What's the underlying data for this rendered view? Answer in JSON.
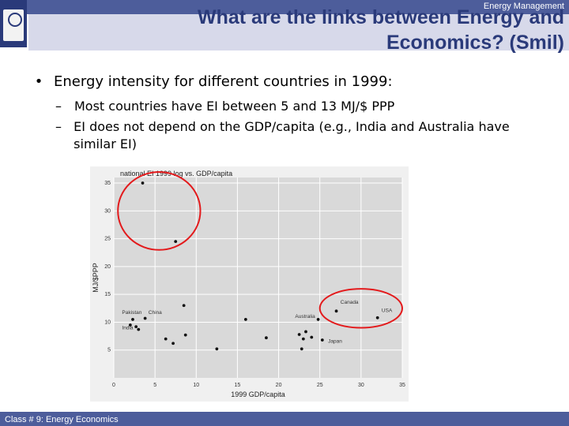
{
  "header": {
    "top_right": "Energy Management",
    "title": "What are the links between Energy and Economics? (Smil)"
  },
  "bullets": [
    {
      "text": "Energy intensity for different countries in 1999:",
      "subitems": [
        "Most countries have EI between 5 and 13 MJ/$ PPP",
        "EI does not depend on the GDP/capita (e.g., India and Australia have similar EI)"
      ]
    }
  ],
  "footer": {
    "text": "Class # 9: Energy Economics"
  },
  "chart_data": {
    "type": "scatter",
    "title": "national EI 1999 log vs. GDP/capita",
    "xlabel": "1999 GDP/capita",
    "ylabel": "MJ/$PPP",
    "xlim": [
      0,
      35
    ],
    "ylim": [
      0,
      36
    ],
    "xticks": [
      0,
      5,
      10,
      15,
      20,
      25,
      30,
      35
    ],
    "yticks": [
      5,
      10,
      15,
      20,
      25,
      30,
      35
    ],
    "points": [
      {
        "x": 3.5,
        "y": 35
      },
      {
        "x": 7.5,
        "y": 24.5
      },
      {
        "x": 8.5,
        "y": 13
      },
      {
        "x": 2.3,
        "y": 10.5
      },
      {
        "x": 2.0,
        "y": 9.5
      },
      {
        "x": 2.7,
        "y": 9.2
      },
      {
        "x": 3.8,
        "y": 10.7
      },
      {
        "x": 3.0,
        "y": 8.7
      },
      {
        "x": 6.3,
        "y": 7.0
      },
      {
        "x": 7.2,
        "y": 6.2
      },
      {
        "x": 8.7,
        "y": 7.7
      },
      {
        "x": 12.5,
        "y": 5.2
      },
      {
        "x": 16.0,
        "y": 10.5
      },
      {
        "x": 18.5,
        "y": 7.2
      },
      {
        "x": 22.5,
        "y": 7.8
      },
      {
        "x": 23.3,
        "y": 8.3
      },
      {
        "x": 23.0,
        "y": 7.0
      },
      {
        "x": 24.0,
        "y": 7.3
      },
      {
        "x": 24.8,
        "y": 10.5
      },
      {
        "x": 25.3,
        "y": 6.8
      },
      {
        "x": 22.8,
        "y": 5.2
      },
      {
        "x": 27.0,
        "y": 12.0
      },
      {
        "x": 32.0,
        "y": 10.8
      }
    ],
    "annotations": [
      {
        "text": "Pakistan",
        "x": 1.0,
        "y": 11.5
      },
      {
        "text": "China",
        "x": 4.2,
        "y": 11.5
      },
      {
        "text": "India",
        "x": 1.0,
        "y": 8.7
      },
      {
        "text": "Australia",
        "x": 22.0,
        "y": 10.8
      },
      {
        "text": "Japan",
        "x": 26.0,
        "y": 6.3
      },
      {
        "text": "Canada",
        "x": 27.5,
        "y": 13.3
      },
      {
        "text": "USA",
        "x": 32.5,
        "y": 11.8
      }
    ],
    "highlights": [
      {
        "type": "circle",
        "cx": 5.5,
        "cy": 30,
        "rx": 5,
        "ry": 7
      },
      {
        "type": "circle",
        "cx": 30.0,
        "cy": 12.5,
        "rx": 5,
        "ry": 3.5
      }
    ],
    "colors": {
      "plot_bg": "#d9d9d9",
      "grid": "#ffffff",
      "point": "#111111",
      "highlight": "#e31a1c"
    },
    "grid": true
  }
}
